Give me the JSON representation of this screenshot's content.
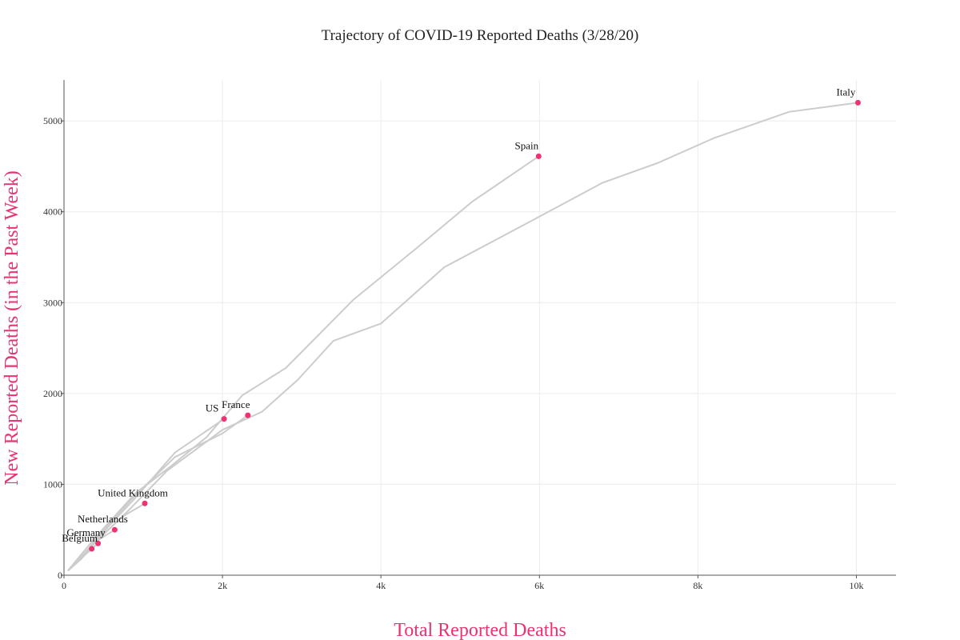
{
  "chart_data": {
    "type": "line",
    "title": "Trajectory of COVID-19 Reported Deaths (3/28/20)",
    "xlabel": "Total Reported Deaths",
    "ylabel": "New Reported Deaths (in the Past Week)",
    "xlim": [
      0,
      10500
    ],
    "ylim": [
      0,
      5450
    ],
    "x_ticks": [
      {
        "value": 0,
        "label": "0"
      },
      {
        "value": 2000,
        "label": "2k"
      },
      {
        "value": 4000,
        "label": "4k"
      },
      {
        "value": 6000,
        "label": "6k"
      },
      {
        "value": 8000,
        "label": "8k"
      },
      {
        "value": 10000,
        "label": "10k"
      }
    ],
    "y_ticks": [
      {
        "value": 0,
        "label": "0"
      },
      {
        "value": 1000,
        "label": "1000"
      },
      {
        "value": 2000,
        "label": "2000"
      },
      {
        "value": 3000,
        "label": "3000"
      },
      {
        "value": 4000,
        "label": "4000"
      },
      {
        "value": 5000,
        "label": "5000"
      }
    ],
    "grid": true,
    "series": [
      {
        "name": "Italy",
        "points": [
          [
            50,
            50
          ],
          [
            300,
            280
          ],
          [
            800,
            700
          ],
          [
            1300,
            1150
          ],
          [
            2000,
            1600
          ],
          [
            2500,
            1800
          ],
          [
            2950,
            2150
          ],
          [
            3400,
            2580
          ],
          [
            4000,
            2770
          ],
          [
            4800,
            3390
          ],
          [
            5900,
            3900
          ],
          [
            6800,
            4320
          ],
          [
            7500,
            4540
          ],
          [
            8200,
            4810
          ],
          [
            9150,
            5100
          ],
          [
            10020,
            5200
          ]
        ]
      },
      {
        "name": "Spain",
        "points": [
          [
            50,
            50
          ],
          [
            400,
            420
          ],
          [
            900,
            900
          ],
          [
            1350,
            1200
          ],
          [
            1800,
            1520
          ],
          [
            2250,
            1980
          ],
          [
            2800,
            2280
          ],
          [
            3650,
            3030
          ],
          [
            4450,
            3600
          ],
          [
            5150,
            4110
          ],
          [
            5990,
            4610
          ]
        ]
      },
      {
        "name": "France",
        "points": [
          [
            50,
            50
          ],
          [
            250,
            230
          ],
          [
            500,
            500
          ],
          [
            900,
            880
          ],
          [
            1400,
            1300
          ],
          [
            2000,
            1560
          ],
          [
            2320,
            1760
          ]
        ]
      },
      {
        "name": "US",
        "points": [
          [
            50,
            50
          ],
          [
            220,
            180
          ],
          [
            500,
            480
          ],
          [
            900,
            850
          ],
          [
            1400,
            1350
          ],
          [
            2020,
            1720
          ]
        ]
      },
      {
        "name": "United Kingdom",
        "points": [
          [
            50,
            50
          ],
          [
            200,
            180
          ],
          [
            450,
            420
          ],
          [
            750,
            650
          ],
          [
            1020,
            790
          ]
        ]
      },
      {
        "name": "Netherlands",
        "points": [
          [
            50,
            50
          ],
          [
            200,
            190
          ],
          [
            420,
            380
          ],
          [
            640,
            500
          ]
        ]
      },
      {
        "name": "Germany",
        "points": [
          [
            50,
            50
          ],
          [
            180,
            160
          ],
          [
            320,
            270
          ],
          [
            430,
            350
          ]
        ]
      },
      {
        "name": "Belgium",
        "points": [
          [
            50,
            50
          ],
          [
            150,
            130
          ],
          [
            260,
            220
          ],
          [
            350,
            290
          ]
        ]
      }
    ],
    "annotations": [
      {
        "series": "Italy",
        "text": "Italy"
      },
      {
        "series": "Spain",
        "text": "Spain"
      },
      {
        "series": "France",
        "text": "France"
      },
      {
        "series": "US",
        "text": "US"
      },
      {
        "series": "United Kingdom",
        "text": "United Kingdom"
      },
      {
        "series": "Netherlands",
        "text": "Netherlands"
      },
      {
        "series": "Germany",
        "text": "Germany"
      },
      {
        "series": "Belgium",
        "text": "Belgium"
      }
    ]
  }
}
